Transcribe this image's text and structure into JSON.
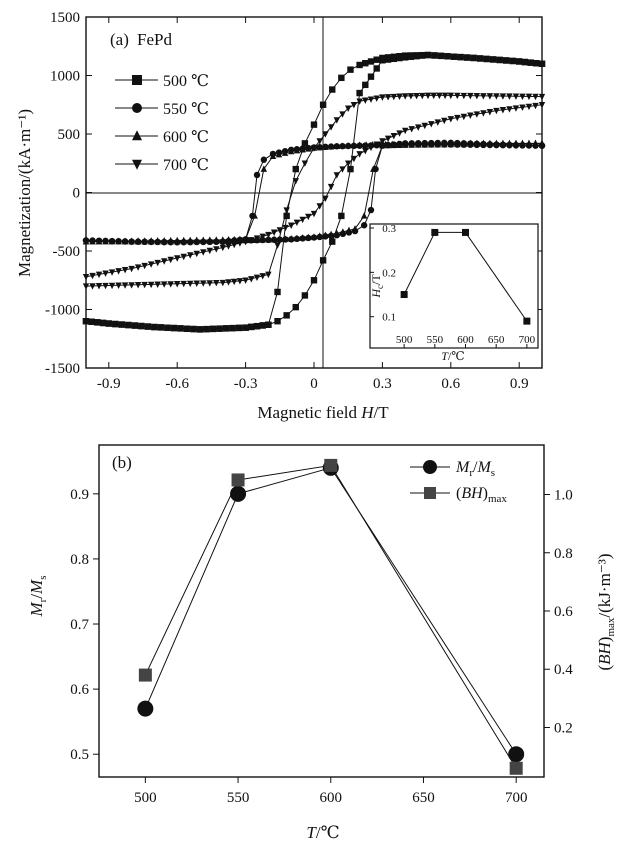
{
  "chart_data": [
    {
      "panel_label": "(a)",
      "title": "FePd",
      "type": "line",
      "xlabel_text": "Magnetic field ",
      "xlabel_var": "H",
      "xlabel_unit": "/T",
      "ylabel": "Magnetization/(kA·m⁻¹)",
      "xlim": [
        -1.0,
        1.0
      ],
      "ylim": [
        -1500,
        1500
      ],
      "x_ticks": [
        "-0.9",
        "-0.6",
        "-0.3",
        "0",
        "0.3",
        "0.6",
        "0.9"
      ],
      "y_ticks": [
        "-1500",
        "-1000",
        "-500",
        "0",
        "500",
        "1000",
        "1500"
      ],
      "legend_position": "top-left",
      "series": [
        {
          "name": "500 ℃",
          "marker": "square",
          "upper": {
            "x": [
              -1.0,
              -0.9,
              -0.7,
              -0.5,
              -0.3,
              -0.2,
              -0.16,
              -0.12,
              -0.08,
              -0.04,
              0,
              0.04,
              0.08,
              0.12,
              0.16,
              0.2,
              0.3,
              0.4,
              0.5,
              0.7,
              0.9,
              1.0
            ],
            "y": [
              -1100,
              -1120,
              -1150,
              -1170,
              -1155,
              -1130,
              -850,
              -200,
              200,
              420,
              580,
              750,
              880,
              980,
              1050,
              1090,
              1150,
              1170,
              1175,
              1150,
              1120,
              1100
            ]
          },
          "lower": {
            "x": [
              -1.0,
              -0.9,
              -0.7,
              -0.5,
              -0.3,
              -0.2,
              -0.16,
              -0.12,
              -0.08,
              -0.04,
              0,
              0.04,
              0.08,
              0.12,
              0.16,
              0.2,
              0.3,
              0.4,
              0.5,
              0.7,
              0.9,
              1.0
            ],
            "y": [
              -1100,
              -1120,
              -1150,
              -1170,
              -1155,
              -1130,
              -1100,
              -1050,
              -980,
              -880,
              -750,
              -580,
              -420,
              -200,
              200,
              850,
              1130,
              1155,
              1175,
              1150,
              1120,
              1100
            ]
          }
        },
        {
          "name": "550 ℃",
          "marker": "circle",
          "upper": {
            "x": [
              -1.0,
              -0.8,
              -0.6,
              -0.4,
              -0.3,
              -0.27,
              -0.25,
              -0.22,
              -0.18,
              -0.1,
              0,
              0.1,
              0.2,
              0.3,
              0.4,
              0.6,
              0.8,
              1.0
            ],
            "y": [
              -410,
              -420,
              -425,
              -420,
              -400,
              -200,
              150,
              280,
              330,
              365,
              385,
              395,
              400,
              405,
              410,
              410,
              405,
              400
            ]
          },
          "lower": {
            "x": [
              -1.0,
              -0.8,
              -0.6,
              -0.4,
              -0.3,
              -0.2,
              -0.1,
              0,
              0.1,
              0.18,
              0.22,
              0.25,
              0.27,
              0.3,
              0.4,
              0.6,
              0.8,
              1.0
            ],
            "y": [
              -410,
              -420,
              -425,
              -420,
              -410,
              -405,
              -400,
              -385,
              -365,
              -330,
              -280,
              -150,
              200,
              400,
              420,
              425,
              410,
              400
            ]
          }
        },
        {
          "name": "600 ℃",
          "marker": "triangle-up",
          "upper": {
            "x": [
              -1.0,
              -0.8,
              -0.6,
              -0.4,
              -0.3,
              -0.26,
              -0.22,
              -0.18,
              -0.1,
              0,
              0.1,
              0.2,
              0.4,
              0.6,
              0.8,
              1.0
            ],
            "y": [
              -420,
              -415,
              -410,
              -405,
              -400,
              -200,
              200,
              310,
              350,
              380,
              395,
              405,
              415,
              420,
              420,
              420
            ]
          },
          "lower": {
            "x": [
              -1.0,
              -0.8,
              -0.6,
              -0.4,
              -0.2,
              -0.1,
              0,
              0.1,
              0.18,
              0.22,
              0.26,
              0.3,
              0.4,
              0.6,
              0.8,
              1.0
            ],
            "y": [
              -420,
              -420,
              -420,
              -415,
              -405,
              -395,
              -380,
              -350,
              -310,
              -200,
              200,
              400,
              405,
              410,
              415,
              420
            ]
          }
        },
        {
          "name": "700 ℃",
          "marker": "triangle-down",
          "upper": {
            "x": [
              -1.0,
              -0.8,
              -0.6,
              -0.4,
              -0.3,
              -0.2,
              -0.16,
              -0.12,
              -0.08,
              -0.04,
              0,
              0.05,
              0.1,
              0.15,
              0.2,
              0.3,
              0.4,
              0.5,
              0.6,
              0.8,
              1.0
            ],
            "y": [
              -800,
              -790,
              -780,
              -770,
              -750,
              -700,
              -450,
              -150,
              100,
              250,
              380,
              500,
              620,
              720,
              780,
              815,
              825,
              830,
              830,
              825,
              820
            ]
          },
          "lower": {
            "x": [
              -1.0,
              -0.8,
              -0.6,
              -0.4,
              -0.3,
              -0.2,
              -0.1,
              0,
              0.05,
              0.1,
              0.15,
              0.2,
              0.3,
              0.4,
              0.6,
              0.8,
              1.0
            ],
            "y": [
              -720,
              -650,
              -560,
              -470,
              -420,
              -360,
              -280,
              -180,
              -50,
              150,
              250,
              330,
              440,
              530,
              630,
              700,
              750
            ]
          }
        }
      ],
      "inset": {
        "type": "line",
        "xlabel_var": "T",
        "xlabel_unit": "/℃",
        "ylabel_var": "H",
        "ylabel_sub": "c",
        "ylabel_unit": "/T",
        "x": [
          500,
          550,
          600,
          700
        ],
        "y": [
          0.15,
          0.29,
          0.29,
          0.09
        ],
        "xlim": [
          490,
          710
        ],
        "ylim": [
          0.07,
          0.3
        ],
        "x_ticks": [
          "500",
          "550",
          "600",
          "650",
          "700"
        ],
        "y_ticks": [
          "0.1",
          "0.2",
          "0.3"
        ]
      }
    },
    {
      "panel_label": "(b)",
      "type": "line",
      "xlabel_var": "T",
      "xlabel_unit": "/℃",
      "x": [
        500,
        550,
        600,
        700
      ],
      "xlim": [
        475,
        715
      ],
      "x_ticks": [
        "500",
        "550",
        "600",
        "650",
        "700"
      ],
      "legend_position": "top-right",
      "left_axis": {
        "label_var1": "M",
        "label_sub1": "r",
        "label_slash": "/",
        "label_var2": "M",
        "label_sub2": "s",
        "ylim": [
          0.465,
          0.975
        ],
        "y_ticks": [
          "0.5",
          "0.6",
          "0.7",
          "0.8",
          "0.9"
        ]
      },
      "right_axis": {
        "label_pre": "(",
        "label_var": "BH",
        "label_post": ")",
        "label_sub": "max",
        "label_unit": "/(kJ·m⁻³)",
        "ylim": [
          0.03,
          1.17
        ],
        "y_ticks": [
          "0.2",
          "0.4",
          "0.6",
          "0.8",
          "1.0"
        ]
      },
      "series": [
        {
          "name_var1": "M",
          "name_sub1": "r",
          "name_slash": "/",
          "name_var2": "M",
          "name_sub2": "s",
          "marker": "circle",
          "axis": "left",
          "values": [
            0.57,
            0.9,
            0.94,
            0.5
          ]
        },
        {
          "name_pre": "(",
          "name_var": "BH",
          "name_post": ")",
          "name_sub": "max",
          "marker": "square",
          "axis": "right",
          "values": [
            0.38,
            1.05,
            1.1,
            0.06
          ]
        }
      ]
    }
  ]
}
